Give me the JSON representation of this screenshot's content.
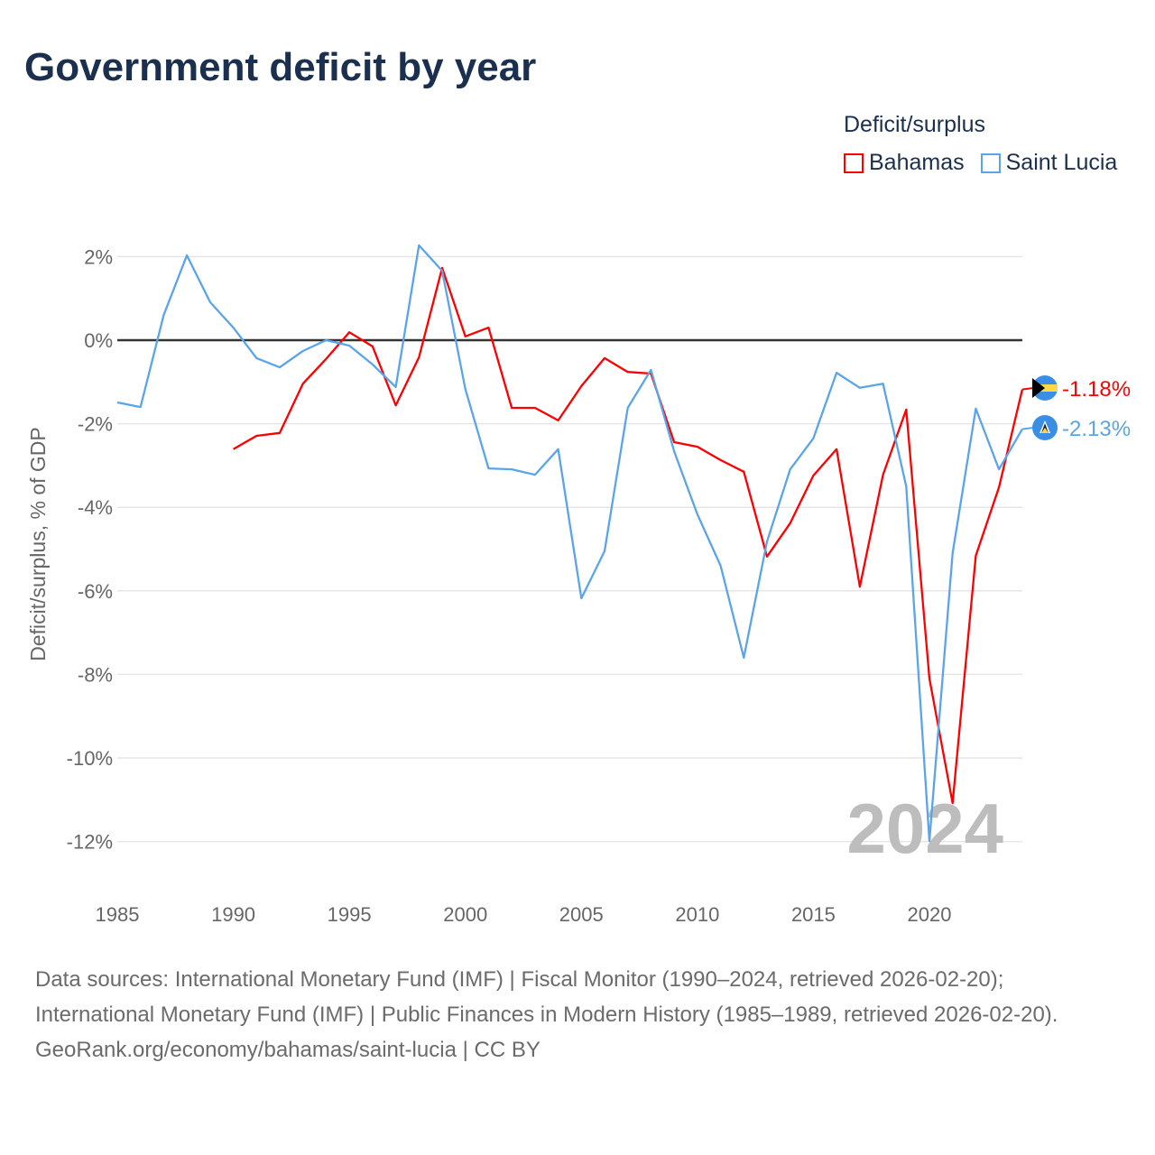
{
  "title": "Government deficit by year",
  "legend": {
    "title": "Deficit/surplus",
    "items": [
      {
        "label": "Bahamas",
        "color": "#ff0000"
      },
      {
        "label": "Saint Lucia",
        "color": "#5aa5ea"
      }
    ]
  },
  "chart_data": {
    "type": "line",
    "title": "Government deficit by year",
    "xlabel": "",
    "ylabel": "Deficit/surplus, % of GDP",
    "xlim": [
      1985,
      2024
    ],
    "ylim": [
      -13.2,
      2.6
    ],
    "x_ticks": [
      "1985",
      "1990",
      "1995",
      "2000",
      "2005",
      "2010",
      "2015",
      "2020"
    ],
    "y_ticks": [
      {
        "value": 2,
        "label": "2%"
      },
      {
        "value": 0,
        "label": "0%"
      },
      {
        "value": -2,
        "label": "-2%"
      },
      {
        "value": -4,
        "label": "-4%"
      },
      {
        "value": -6,
        "label": "-6%"
      },
      {
        "value": -8,
        "label": "-8%"
      },
      {
        "value": -10,
        "label": "-10%"
      },
      {
        "value": -12,
        "label": "-12%"
      }
    ],
    "watermark": "2024",
    "series": [
      {
        "name": "Bahamas",
        "color": "#ff0000",
        "end_label": "-1.18%",
        "flag": "bahamas-flag",
        "start_year": 1990,
        "values": [
          -2.61,
          -2.29,
          -2.22,
          -1.04,
          -0.45,
          0.19,
          -0.15,
          -1.56,
          -0.41,
          1.73,
          0.09,
          0.3,
          -1.62,
          -1.62,
          -1.92,
          -1.1,
          -0.43,
          -0.76,
          -0.8,
          -2.44,
          -2.55,
          -2.87,
          -3.15,
          -5.18,
          -4.38,
          -3.24,
          -2.61,
          -5.9,
          -3.22,
          -1.66,
          -8.1,
          -11.08,
          -5.16,
          -3.52,
          -1.18
        ]
      },
      {
        "name": "Saint Lucia",
        "color": "#5aa5ea",
        "end_label": "-2.13%",
        "flag": "saint-lucia-flag",
        "start_year": 1985,
        "values": [
          -1.49,
          -1.6,
          0.6,
          2.03,
          0.91,
          0.3,
          -0.43,
          -0.65,
          -0.26,
          0.0,
          -0.13,
          -0.58,
          -1.12,
          2.27,
          1.66,
          -1.17,
          -3.07,
          -3.09,
          -3.22,
          -2.61,
          -6.18,
          -5.05,
          -1.62,
          -0.71,
          -2.66,
          -4.17,
          -5.4,
          -7.6,
          -4.82,
          -3.09,
          -2.35,
          -0.78,
          -1.14,
          -1.04,
          -3.5,
          -11.99,
          -5.1,
          -1.64,
          -3.09,
          -2.13
        ]
      }
    ]
  },
  "footer": {
    "sources": "Data sources: International Monetary Fund (IMF) | Fiscal Monitor (1990–2024, retrieved 2026-02-20); International Monetary Fund (IMF) | Public Finances in Modern History (1985–1989, retrieved 2026-02-20).",
    "credit": "GeoRank.org/economy/bahamas/saint-lucia | CC BY"
  }
}
